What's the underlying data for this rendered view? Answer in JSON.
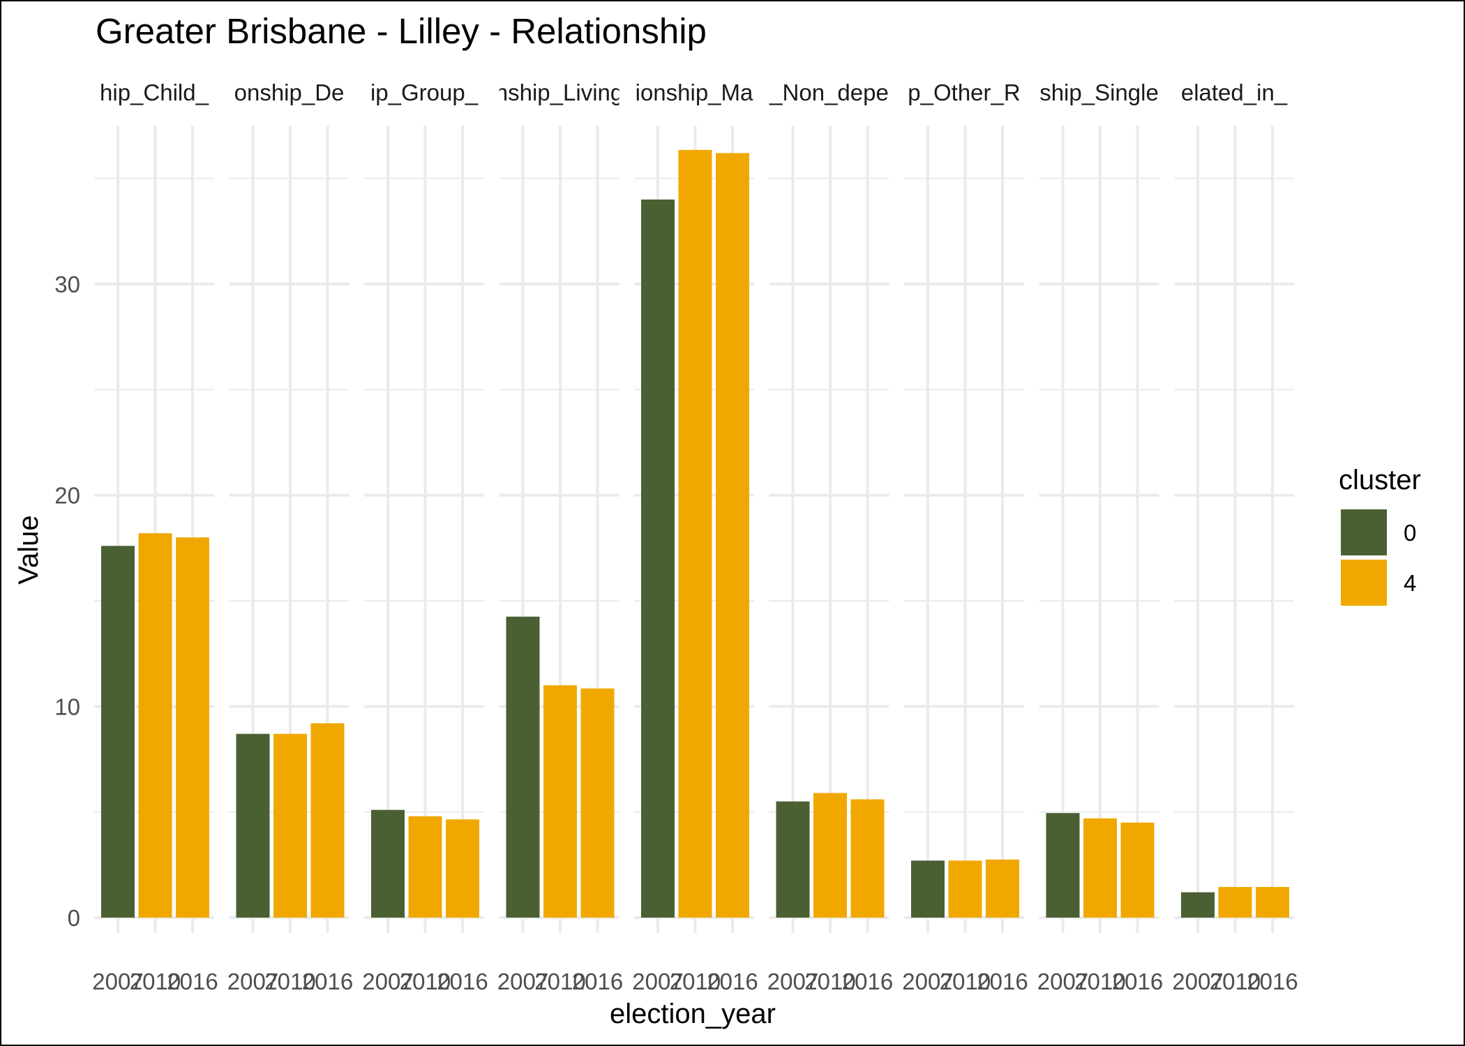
{
  "chart_data": {
    "type": "bar",
    "title": "Greater Brisbane - Lilley - Relationship",
    "xlabel": "election_year",
    "ylabel": "Value",
    "ylim": [
      0,
      37.5
    ],
    "yticks": [
      0,
      10,
      20,
      30
    ],
    "grid": true,
    "legend": {
      "title": "cluster",
      "placement": "right",
      "entries": [
        {
          "label": "0",
          "color": "#4a6032"
        },
        {
          "label": "4",
          "color": "#f0a800"
        }
      ]
    },
    "facets": [
      {
        "label": "hip_Child_",
        "bars": [
          {
            "year": "2007",
            "cluster": "0",
            "value": 17.6
          },
          {
            "year": "2010",
            "cluster": "4",
            "value": 18.2
          },
          {
            "year": "2016",
            "cluster": "4",
            "value": 18.0
          }
        ]
      },
      {
        "label": "onship_De",
        "bars": [
          {
            "year": "2007",
            "cluster": "0",
            "value": 8.7
          },
          {
            "year": "2010",
            "cluster": "4",
            "value": 8.7
          },
          {
            "year": "2016",
            "cluster": "4",
            "value": 9.2
          }
        ]
      },
      {
        "label": "ip_Group_",
        "bars": [
          {
            "year": "2007",
            "cluster": "0",
            "value": 5.1
          },
          {
            "year": "2010",
            "cluster": "4",
            "value": 4.8
          },
          {
            "year": "2016",
            "cluster": "4",
            "value": 4.65
          }
        ]
      },
      {
        "label": "nship_Living",
        "bars": [
          {
            "year": "2007",
            "cluster": "0",
            "value": 14.25
          },
          {
            "year": "2010",
            "cluster": "4",
            "value": 11.0
          },
          {
            "year": "2016",
            "cluster": "4",
            "value": 10.85
          }
        ]
      },
      {
        "label": "ionship_Ma",
        "bars": [
          {
            "year": "2007",
            "cluster": "0",
            "value": 34.0
          },
          {
            "year": "2010",
            "cluster": "4",
            "value": 36.35
          },
          {
            "year": "2016",
            "cluster": "4",
            "value": 36.2
          }
        ]
      },
      {
        "label": "_Non_depe",
        "bars": [
          {
            "year": "2007",
            "cluster": "0",
            "value": 5.5
          },
          {
            "year": "2010",
            "cluster": "4",
            "value": 5.9
          },
          {
            "year": "2016",
            "cluster": "4",
            "value": 5.6
          }
        ]
      },
      {
        "label": "p_Other_R",
        "bars": [
          {
            "year": "2007",
            "cluster": "0",
            "value": 2.7
          },
          {
            "year": "2010",
            "cluster": "4",
            "value": 2.7
          },
          {
            "year": "2016",
            "cluster": "4",
            "value": 2.75
          }
        ]
      },
      {
        "label": "ship_Single",
        "bars": [
          {
            "year": "2007",
            "cluster": "0",
            "value": 4.95
          },
          {
            "year": "2010",
            "cluster": "4",
            "value": 4.7
          },
          {
            "year": "2016",
            "cluster": "4",
            "value": 4.5
          }
        ]
      },
      {
        "label": "elated_in_",
        "bars": [
          {
            "year": "2007",
            "cluster": "0",
            "value": 1.2
          },
          {
            "year": "2010",
            "cluster": "4",
            "value": 1.45
          },
          {
            "year": "2016",
            "cluster": "4",
            "value": 1.45
          }
        ]
      }
    ]
  }
}
